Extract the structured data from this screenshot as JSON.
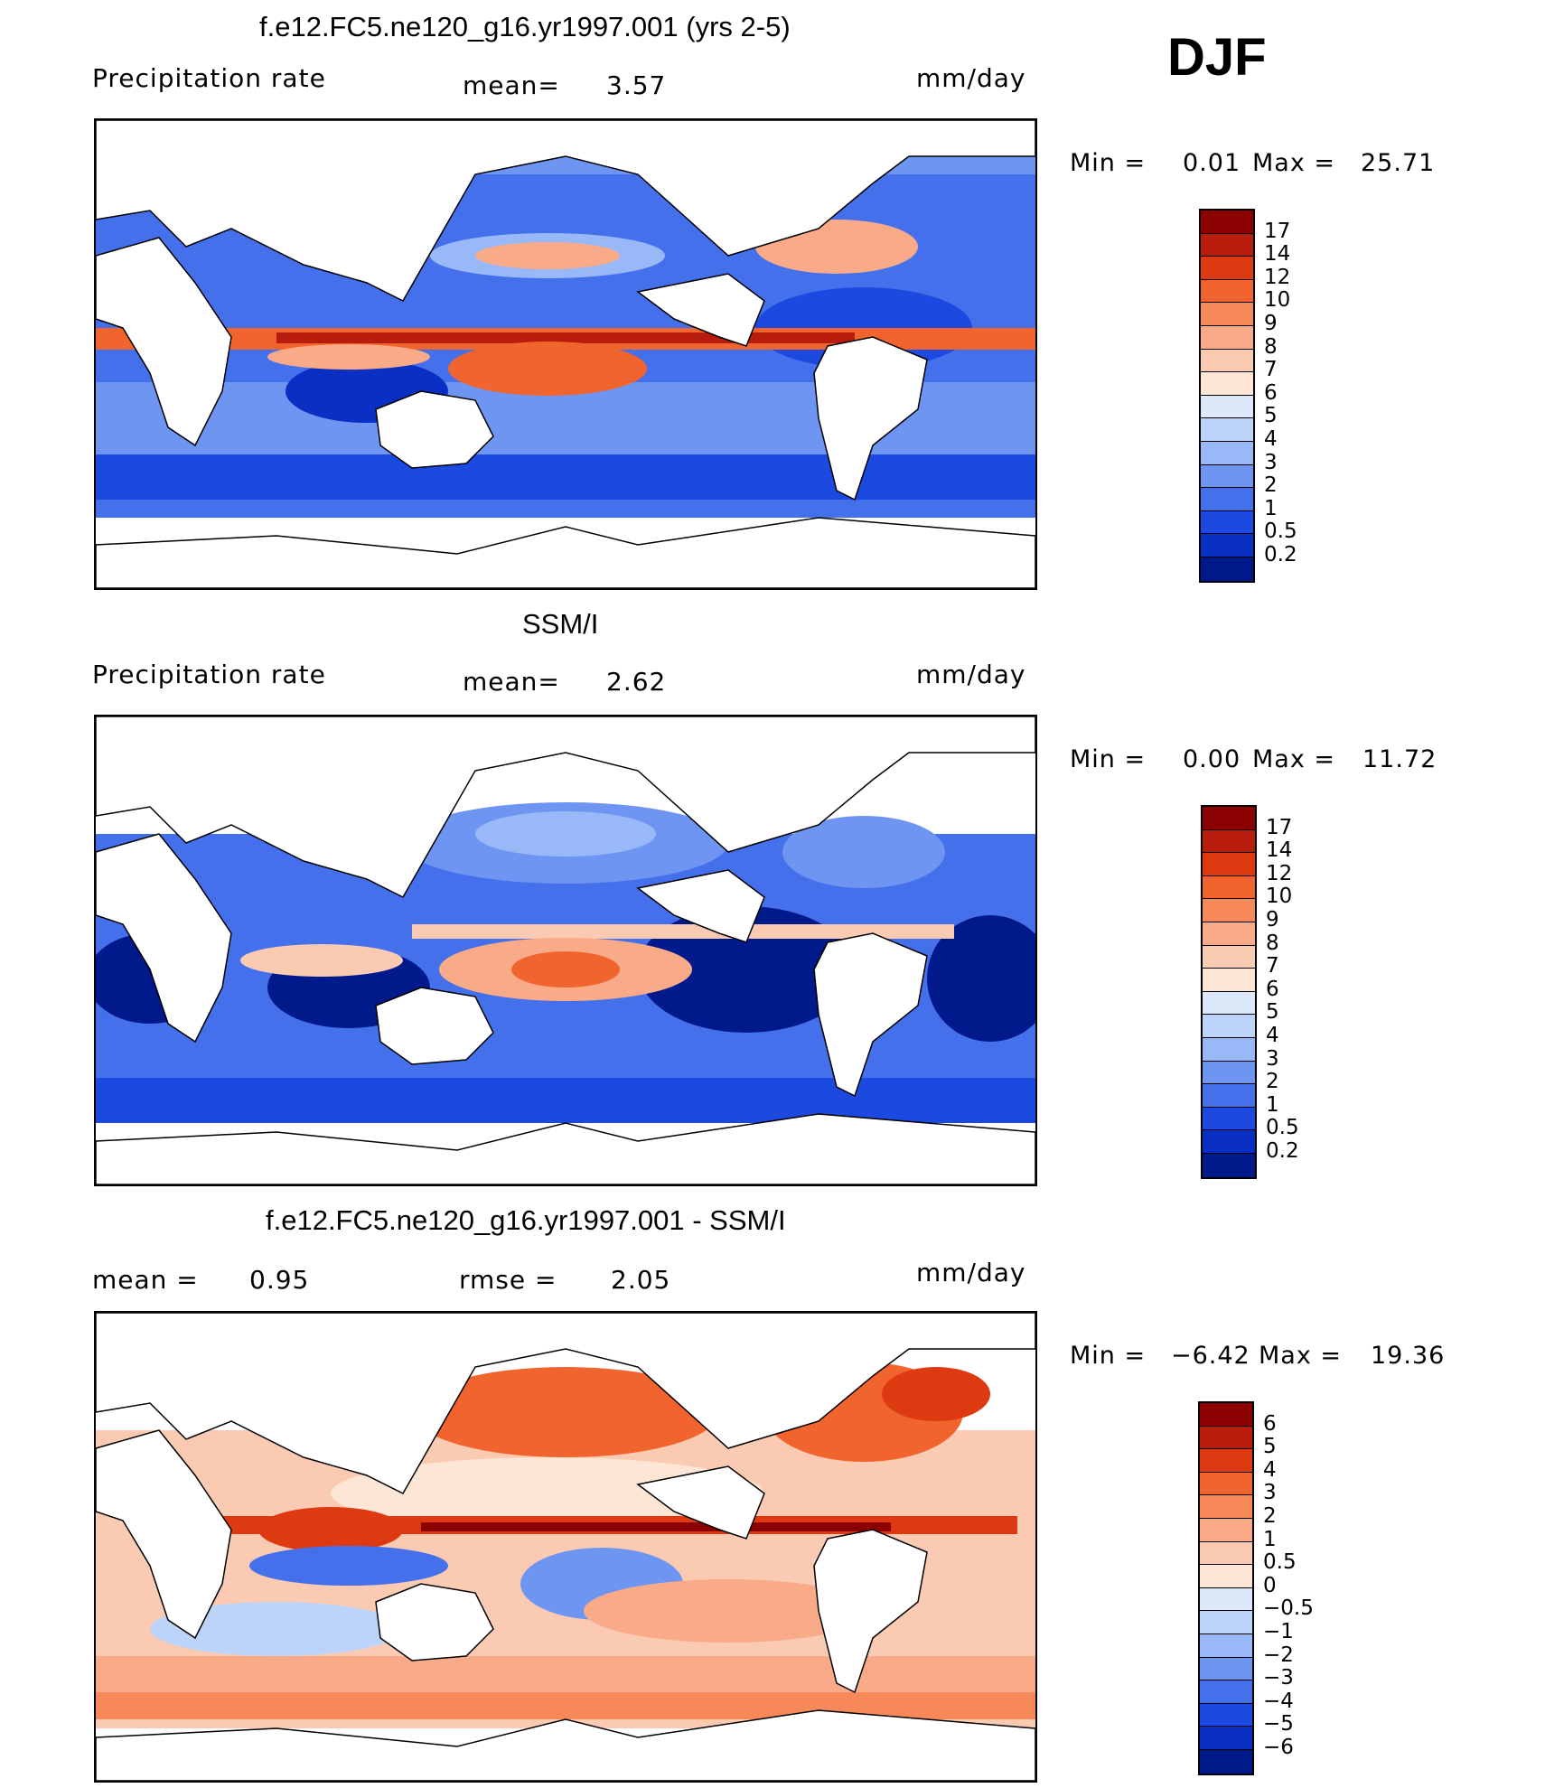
{
  "season": "DJF",
  "panels": [
    {
      "id": "model",
      "title": "f.e12.FC5.ne120_g16.yr1997.001 (yrs 2-5)",
      "left_label": "Precipitation  rate",
      "stat1_label": "mean=",
      "stat1_value": "3.57",
      "stat2_label": "",
      "stat2_value": "",
      "units": "mm/day",
      "min_label": "Min  =",
      "min_value": "0.01",
      "max_label": "Max  =",
      "max_value": "25.71",
      "colorbar_levels": [
        "17",
        "14",
        "12",
        "10",
        "9",
        "8",
        "7",
        "6",
        "5",
        "4",
        "3",
        "2",
        "1",
        "0.5",
        "0.2"
      ],
      "colorbar_colors": [
        "#8b0000",
        "#b71c0c",
        "#de3a12",
        "#f2642e",
        "#f7885a",
        "#f9aa88",
        "#fbcab2",
        "#fde6d6",
        "#dbe9fb",
        "#bdd4fa",
        "#98b8f7",
        "#6f95f2",
        "#4470ec",
        "#1c49e0",
        "#0a2fc4",
        "#001a8c"
      ]
    },
    {
      "id": "obs",
      "title": "SSM/I",
      "left_label": "Precipitation  rate",
      "stat1_label": "mean=",
      "stat1_value": "2.62",
      "stat2_label": "",
      "stat2_value": "",
      "units": "mm/day",
      "min_label": "Min  =",
      "min_value": "0.00",
      "max_label": "Max  =",
      "max_value": "11.72",
      "colorbar_levels": [
        "17",
        "14",
        "12",
        "10",
        "9",
        "8",
        "7",
        "6",
        "5",
        "4",
        "3",
        "2",
        "1",
        "0.5",
        "0.2"
      ],
      "colorbar_colors": [
        "#8b0000",
        "#b71c0c",
        "#de3a12",
        "#f2642e",
        "#f7885a",
        "#f9aa88",
        "#fbcab2",
        "#fde6d6",
        "#dbe9fb",
        "#bdd4fa",
        "#98b8f7",
        "#6f95f2",
        "#4470ec",
        "#1c49e0",
        "#0a2fc4",
        "#001a8c"
      ]
    },
    {
      "id": "diff",
      "title": "f.e12.FC5.ne120_g16.yr1997.001 - SSM/I",
      "left_label": "mean  =",
      "stat1_label": "rmse  =",
      "stat1_value": "2.05",
      "stat0_value": "0.95",
      "units": "mm/day",
      "min_label": "Min  =",
      "min_value": "−6.42",
      "max_label": "Max  =",
      "max_value": "19.36",
      "colorbar_levels": [
        "6",
        "5",
        "4",
        "3",
        "2",
        "1",
        "0.5",
        "0",
        "−0.5",
        "−1",
        "−2",
        "−3",
        "−4",
        "−5",
        "−6"
      ],
      "colorbar_colors": [
        "#8b0000",
        "#b71c0c",
        "#de3a12",
        "#f2642e",
        "#f7885a",
        "#f9aa88",
        "#fbcab2",
        "#fde6d6",
        "#dbe9fb",
        "#bdd4fa",
        "#98b8f7",
        "#6f95f2",
        "#4470ec",
        "#1c49e0",
        "#0a2fc4",
        "#001a8c"
      ]
    }
  ],
  "colors": {
    "ocean_low": "#0a2fc4",
    "ocean_mid": "#4470ec",
    "ocean_light": "#98b8f7",
    "itcz_high": "#de3a12",
    "itcz_peak": "#8b0000",
    "diff_warm": "#f7885a",
    "diff_light": "#fbcab2"
  }
}
